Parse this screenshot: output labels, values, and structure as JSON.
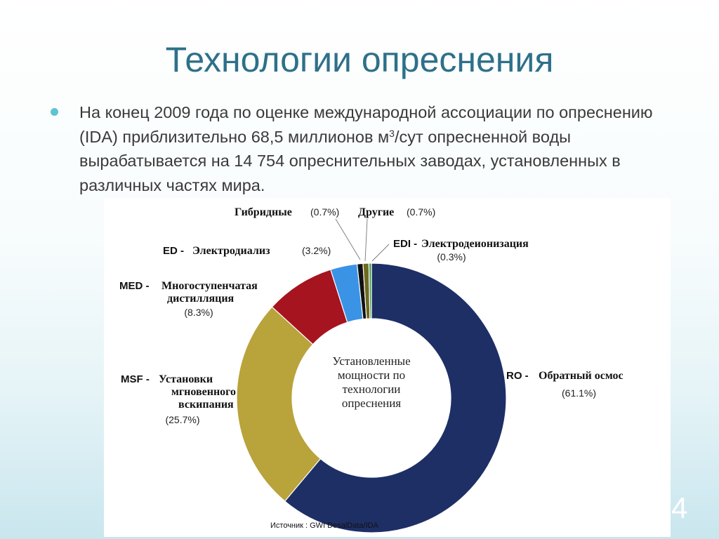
{
  "slide": {
    "title": "Технологии опреснения",
    "bullet_before_sup": "На конец 2009 года по оценке международной ассоциации по опреснению (IDA) приблизительно 68,5  миллионов м",
    "bullet_sup": "3",
    "bullet_after_sup": "/сут опресненной воды вырабатывается на 14 754 опреснительных заводах, установленных в различных частях мира.",
    "page_number": "4"
  },
  "chart_data": {
    "type": "pie",
    "variant": "donut",
    "center_label": [
      "Установленные",
      "мощности по",
      "технологии",
      "опреснения"
    ],
    "source": "Источник : GWI DesalData/IDA",
    "slices": [
      {
        "key": "ro",
        "code": "RO -",
        "name_lines": [
          "Обратный осмос"
        ],
        "pct_label": "(61.1%)",
        "value": 61.1,
        "color": "#1e2f66"
      },
      {
        "key": "msf",
        "code": "MSF -",
        "name_lines": [
          "Установки",
          "мгновенного",
          "вскипания"
        ],
        "pct_label": "(25.7%)",
        "value": 25.7,
        "color": "#b9a33b"
      },
      {
        "key": "med",
        "code": "MED -",
        "name_lines": [
          "Многоступенчатая",
          "дистилляция"
        ],
        "pct_label": "(8.3%)",
        "value": 8.3,
        "color": "#a6141f"
      },
      {
        "key": "ed",
        "code": "ED -",
        "name_lines": [
          "Электродиализ"
        ],
        "pct_label": "(3.2%)",
        "value": 3.2,
        "color": "#3b93e6"
      },
      {
        "key": "hybrid",
        "code": "",
        "name_lines": [
          "Гибридные"
        ],
        "pct_label": "(0.7%)",
        "value": 0.7,
        "color": "#111111"
      },
      {
        "key": "other",
        "code": "",
        "name_lines": [
          "Другие"
        ],
        "pct_label": "(0.7%)",
        "value": 0.7,
        "color": "#6f6a22"
      },
      {
        "key": "edi",
        "code": "EDI -",
        "name_lines": [
          "Электродеионизация"
        ],
        "pct_label": "(0.3%)",
        "value": 0.3,
        "color": "#3f9e4a"
      }
    ]
  }
}
